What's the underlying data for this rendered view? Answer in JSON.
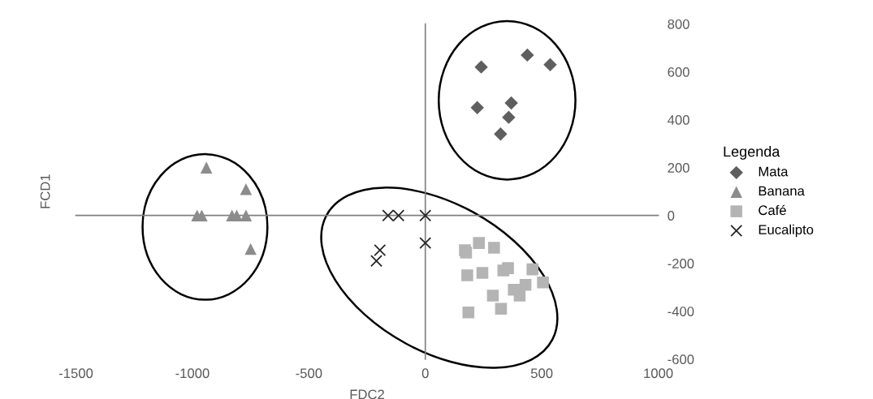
{
  "chart_data": {
    "type": "scatter",
    "xlabel": "FDC2",
    "ylabel": "FCD1",
    "legend_title": "Legenda",
    "legend": "right",
    "xlim": [
      -1500,
      1000
    ],
    "xticks": [
      -1500,
      -1000,
      -500,
      0,
      500,
      1000
    ],
    "ylim": [
      -600,
      800
    ],
    "yticks": [
      -600,
      -400,
      -200,
      0,
      200,
      400,
      600,
      800
    ],
    "series": [
      {
        "name": "Mata",
        "color": "#5f5f5f",
        "marker": "diamond",
        "x": [
          240,
          438,
          536,
          223,
          369,
          358,
          323
        ],
        "values": [
          620,
          670,
          630,
          450,
          470,
          410,
          340
        ]
      },
      {
        "name": "Banana",
        "color": "#8c8c8c",
        "marker": "triangle",
        "x": [
          -940,
          -770,
          -980,
          -960,
          -830,
          -810,
          -770,
          -750
        ],
        "values": [
          200,
          110,
          0,
          0,
          0,
          0,
          0,
          -140
        ]
      },
      {
        "name": "Café",
        "color": "#b4b4b4",
        "marker": "square",
        "x": [
          170,
          175,
          230,
          295,
          180,
          245,
          335,
          355,
          460,
          505,
          380,
          430,
          405,
          290,
          325,
          185
        ],
        "values": [
          -145,
          -155,
          -115,
          -135,
          -250,
          -240,
          -230,
          -220,
          -225,
          -280,
          -310,
          -290,
          -335,
          -335,
          -390,
          -405
        ]
      },
      {
        "name": "Eucalipto",
        "color": "#262626",
        "marker": "cross",
        "x": [
          -160,
          -115,
          0,
          0,
          -195,
          -210
        ],
        "values": [
          0,
          0,
          0,
          -115,
          -145,
          -190
        ]
      }
    ]
  }
}
